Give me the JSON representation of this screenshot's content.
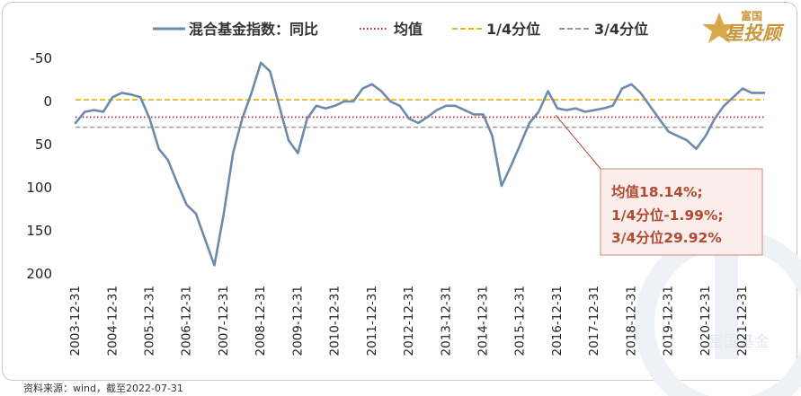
{
  "legend": {
    "series_label": "混合基金指数：同比",
    "mean_label": "均值",
    "q1_label": "1/4分位",
    "q3_label": "3/4分位"
  },
  "logo": {
    "top": "富国",
    "main": "星投顾"
  },
  "watermark": "富国基金",
  "source": "资料来源：wind，截至2022-07-31",
  "annotation": {
    "line1": "均值18.14%;",
    "line2": "1/4分位-1.99%;",
    "line3": "3/4分位29.92%"
  },
  "colors": {
    "series": "#6d8aab",
    "mean": "#c0142a",
    "q1": "#e8b516",
    "q3": "#999999",
    "annotation_box": "#fbeeea",
    "annotation_border": "#c98a7b",
    "annotation_text": "#b04a34"
  },
  "chart_data": {
    "type": "line",
    "y_axis_inverted": true,
    "ylim": [
      -50,
      200
    ],
    "y_ticks": [
      -50,
      0,
      50,
      100,
      150,
      200
    ],
    "y_tick_labels": [
      "-50",
      "0",
      "50",
      "100",
      "150",
      "200"
    ],
    "x_ticks": [
      "2003-12-31",
      "2004-12-31",
      "2005-12-31",
      "2006-12-31",
      "2007-12-31",
      "2008-12-31",
      "2009-12-31",
      "2010-12-31",
      "2011-12-31",
      "2012-12-31",
      "2013-12-31",
      "2014-12-31",
      "2015-12-31",
      "2016-12-31",
      "2017-12-31",
      "2018-12-31",
      "2019-12-31",
      "2020-12-31",
      "2021-12-31"
    ],
    "reference_lines": [
      {
        "name": "均值",
        "value": 18.14
      },
      {
        "name": "1/4分位",
        "value": -1.99
      },
      {
        "name": "3/4分位",
        "value": 29.92
      }
    ],
    "series": [
      {
        "name": "混合基金指数：同比",
        "x": [
          "2003-12-31",
          "2004-03-31",
          "2004-06-30",
          "2004-09-30",
          "2004-12-31",
          "2005-03-31",
          "2005-06-30",
          "2005-09-30",
          "2005-12-31",
          "2006-03-31",
          "2006-06-30",
          "2006-09-30",
          "2006-12-31",
          "2007-03-31",
          "2007-06-30",
          "2007-09-30",
          "2007-12-31",
          "2008-03-31",
          "2008-06-30",
          "2008-09-30",
          "2008-12-31",
          "2009-03-31",
          "2009-06-30",
          "2009-09-30",
          "2009-12-31",
          "2010-03-31",
          "2010-06-30",
          "2010-09-30",
          "2010-12-31",
          "2011-03-31",
          "2011-06-30",
          "2011-09-30",
          "2011-12-31",
          "2012-03-31",
          "2012-06-30",
          "2012-09-30",
          "2012-12-31",
          "2013-03-31",
          "2013-06-30",
          "2013-09-30",
          "2013-12-31",
          "2014-03-31",
          "2014-06-30",
          "2014-09-30",
          "2014-12-31",
          "2015-03-31",
          "2015-06-30",
          "2015-09-30",
          "2015-12-31",
          "2016-03-31",
          "2016-06-30",
          "2016-09-30",
          "2016-12-31",
          "2017-03-31",
          "2017-06-30",
          "2017-09-30",
          "2017-12-31",
          "2018-03-31",
          "2018-06-30",
          "2018-09-30",
          "2018-12-31",
          "2019-03-31",
          "2019-06-30",
          "2019-09-30",
          "2019-12-31",
          "2020-03-31",
          "2020-06-30",
          "2020-09-30",
          "2020-12-31",
          "2021-03-31",
          "2021-06-30",
          "2021-09-30",
          "2021-12-31",
          "2022-03-31",
          "2022-07-31"
        ],
        "values": [
          25,
          12,
          10,
          12,
          -5,
          -10,
          -8,
          -5,
          20,
          55,
          68,
          95,
          120,
          130,
          160,
          190,
          130,
          60,
          20,
          -10,
          -45,
          -35,
          5,
          45,
          60,
          20,
          5,
          8,
          5,
          0,
          0,
          -15,
          -20,
          -12,
          0,
          5,
          20,
          25,
          18,
          10,
          5,
          5,
          10,
          15,
          15,
          40,
          98,
          75,
          50,
          25,
          12,
          -12,
          8,
          10,
          8,
          12,
          10,
          8,
          5,
          -15,
          -20,
          -10,
          5,
          20,
          35,
          40,
          45,
          55,
          40,
          20,
          5,
          -5,
          -15,
          -10,
          -10
        ]
      }
    ]
  }
}
